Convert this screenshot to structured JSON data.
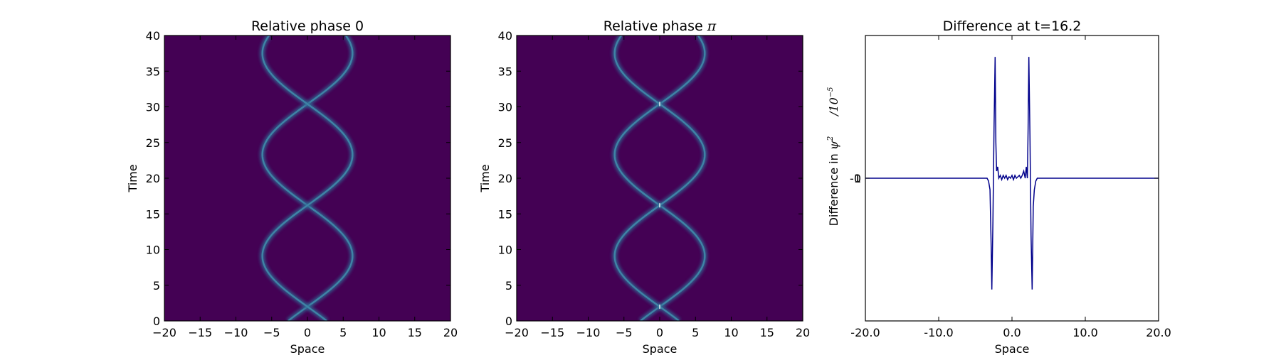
{
  "colors": {
    "background": "#440154",
    "track": "#3f83a6",
    "track_glow": "#2f6a94",
    "line": "#00008b",
    "axis": "#000000"
  },
  "chart_data": [
    {
      "type": "heatmap",
      "title": "Relative phase 0",
      "xlabel": "Space",
      "ylabel": "Time",
      "xlim": [
        -20,
        20
      ],
      "ylim": [
        0,
        40
      ],
      "xticks": [
        "−20",
        "−15",
        "−10",
        "−5",
        "0",
        "5",
        "10",
        "15",
        "20"
      ],
      "xtick_values": [
        -20,
        -15,
        -10,
        -5,
        0,
        5,
        10,
        15,
        20
      ],
      "yticks": [
        "0",
        "5",
        "10",
        "15",
        "20",
        "25",
        "30",
        "35",
        "40"
      ],
      "ytick_values": [
        0,
        5,
        10,
        15,
        20,
        25,
        30,
        35,
        40
      ],
      "tracks": {
        "amplitude": 6.3,
        "period": 28.4,
        "phase_time": 2.0,
        "crossings_time": [
          2.0,
          16.2,
          30.4
        ],
        "max_separation_time": [
          9.1,
          23.3,
          37.5
        ]
      }
    },
    {
      "type": "heatmap",
      "title_prefix": "Relative phase ",
      "title_symbol": "π",
      "xlabel": "Space",
      "ylabel": "Time",
      "xlim": [
        -20,
        20
      ],
      "ylim": [
        0,
        40
      ],
      "xticks": [
        "−20",
        "−15",
        "−10",
        "−5",
        "0",
        "5",
        "10",
        "15",
        "20"
      ],
      "xtick_values": [
        -20,
        -15,
        -10,
        -5,
        0,
        5,
        10,
        15,
        20
      ],
      "yticks": [
        "0",
        "5",
        "10",
        "15",
        "20",
        "25",
        "30",
        "35",
        "40"
      ],
      "ytick_values": [
        0,
        5,
        10,
        15,
        20,
        25,
        30,
        35,
        40
      ],
      "tracks": {
        "amplitude": 6.3,
        "period": 28.4,
        "phase_time": 2.0,
        "crossings_time": [
          2.0,
          16.2,
          30.4
        ],
        "max_separation_time": [
          9.1,
          23.3,
          37.5
        ]
      }
    },
    {
      "type": "line",
      "title": "Difference at t=16.2",
      "xlabel": "Space",
      "ylabel_text": "Difference in ",
      "ylabel_symbol": "ψ",
      "ylabel_sup": "2",
      "ylabel_scale": "/10",
      "ylabel_scale_sup": "−5",
      "xlim": [
        -20,
        20
      ],
      "ylim": [
        -1,
        1
      ],
      "xticks": [
        "-20.0",
        "-10.0",
        "0.0",
        "10.0",
        "20.0"
      ],
      "xtick_values": [
        -20,
        -10,
        0,
        10,
        20
      ],
      "ytick_labels": [
        "-1",
        "0",
        "1"
      ],
      "series": [
        {
          "x": [
            -20,
            -3.4,
            -3.2,
            -3.0,
            -2.85,
            -2.75,
            -2.6,
            -2.45,
            -2.3,
            -2.2,
            -2.1,
            -1.95,
            -1.8,
            -1.6,
            -1.4,
            -1.2,
            -1.0,
            -0.8,
            -0.6,
            -0.4,
            -0.2,
            0.0,
            0.2,
            0.4,
            0.6,
            0.8,
            1.0,
            1.2,
            1.4,
            1.6,
            1.8,
            1.95,
            2.1,
            2.2,
            2.3,
            2.45,
            2.6,
            2.75,
            2.9,
            3.05,
            3.25,
            3.45,
            3.7,
            20
          ],
          "y": [
            0.0,
            0.0,
            -0.02,
            -0.08,
            -0.45,
            -0.78,
            -0.3,
            0.35,
            0.85,
            0.25,
            0.05,
            0.08,
            0.0,
            0.02,
            -0.01,
            0.02,
            0.0,
            0.02,
            -0.01,
            0.01,
            0.0,
            0.02,
            -0.01,
            0.02,
            0.0,
            0.01,
            0.02,
            0.0,
            0.02,
            0.05,
            0.0,
            0.08,
            0.0,
            0.35,
            0.85,
            0.3,
            -0.4,
            -0.78,
            -0.2,
            -0.08,
            -0.02,
            0.0,
            0.0,
            0.0
          ]
        }
      ]
    }
  ]
}
